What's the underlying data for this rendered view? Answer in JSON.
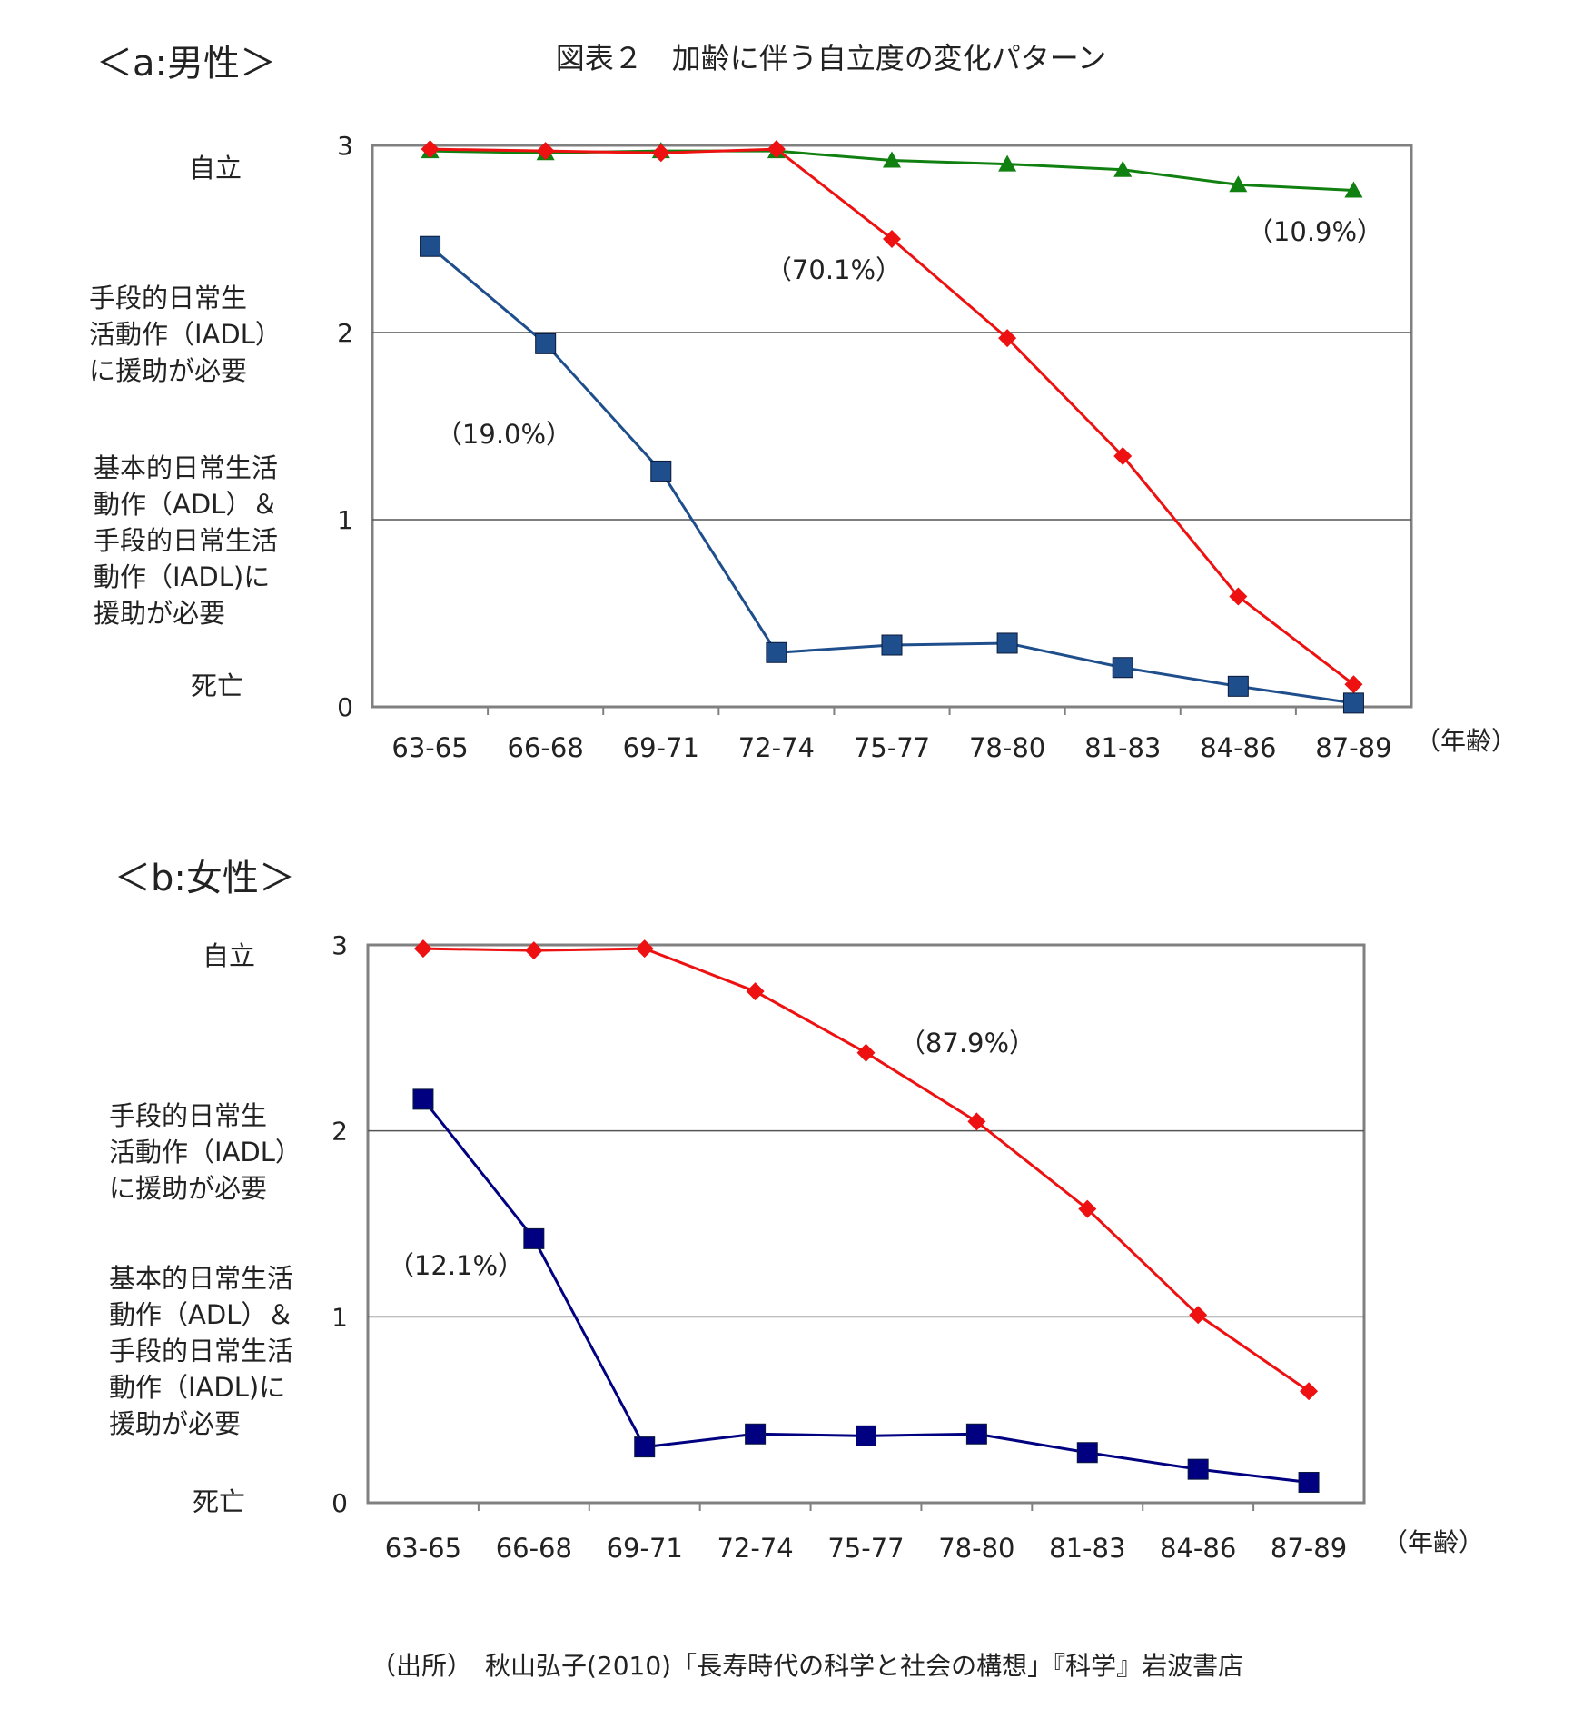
{
  "figure_title": "図表２　加齢に伴う自立度の変化パターン",
  "source_note": "（出所）　秋山弘子(2010)「長寿時代の科学と社会の構想」『科学』岩波書店",
  "x_unit": "（年齢）",
  "colors": {
    "red": "#ee1111",
    "blue_a": "#1f4e8c",
    "blue_b": "#000080",
    "green": "#108010",
    "grid": "#555555",
    "frame": "#808080"
  },
  "chart_data": [
    {
      "type": "line",
      "title": "＜a:男性＞",
      "categories": [
        "63-65",
        "66-68",
        "69-71",
        "72-74",
        "75-77",
        "78-80",
        "81-83",
        "84-86",
        "87-89"
      ],
      "ylim": [
        0,
        3
      ],
      "yticks": [
        "0",
        "1",
        "2",
        "3"
      ],
      "level_labels": {
        "l3": [
          "自立"
        ],
        "l2": [
          "手段的日常生",
          "活動作（IADL）",
          "に援助が必要"
        ],
        "l1": [
          "基本的日常生活",
          "動作（ADL）＆",
          "手段的日常生活",
          "動作（IADL)に",
          "援助が必要"
        ],
        "l0": [
          "死亡"
        ]
      },
      "series": [
        {
          "name": "green",
          "marker": "triangle",
          "label": "（10.9%）",
          "values": [
            2.97,
            2.96,
            2.97,
            2.97,
            2.92,
            2.9,
            2.87,
            2.79,
            2.76
          ]
        },
        {
          "name": "red",
          "marker": "diamond",
          "label": "（70.1%）",
          "values": [
            2.98,
            2.97,
            2.96,
            2.98,
            2.5,
            1.97,
            1.34,
            0.59,
            0.12
          ]
        },
        {
          "name": "blue",
          "marker": "square",
          "label": "（19.0%）",
          "values": [
            2.46,
            1.94,
            1.26,
            0.29,
            0.33,
            0.34,
            0.21,
            0.11,
            0.02
          ]
        }
      ]
    },
    {
      "type": "line",
      "title": "＜b:女性＞",
      "categories": [
        "63-65",
        "66-68",
        "69-71",
        "72-74",
        "75-77",
        "78-80",
        "81-83",
        "84-86",
        "87-89"
      ],
      "ylim": [
        0,
        3
      ],
      "yticks": [
        "0",
        "1",
        "2",
        "3"
      ],
      "level_labels": {
        "l3": [
          "自立"
        ],
        "l2": [
          "手段的日常生",
          "活動作（IADL）",
          "に援助が必要"
        ],
        "l1": [
          "基本的日常生活",
          "動作（ADL）＆",
          "手段的日常生活",
          "動作（IADL)に",
          "援助が必要"
        ],
        "l0": [
          "死亡"
        ]
      },
      "series": [
        {
          "name": "red",
          "marker": "diamond",
          "label": "（87.9%）",
          "values": [
            2.98,
            2.97,
            2.98,
            2.75,
            2.42,
            2.05,
            1.58,
            1.01,
            0.6
          ]
        },
        {
          "name": "blue",
          "marker": "square",
          "label": "（12.1%）",
          "values": [
            2.17,
            1.42,
            0.3,
            0.37,
            0.36,
            0.37,
            0.27,
            0.18,
            0.11
          ]
        }
      ]
    }
  ]
}
